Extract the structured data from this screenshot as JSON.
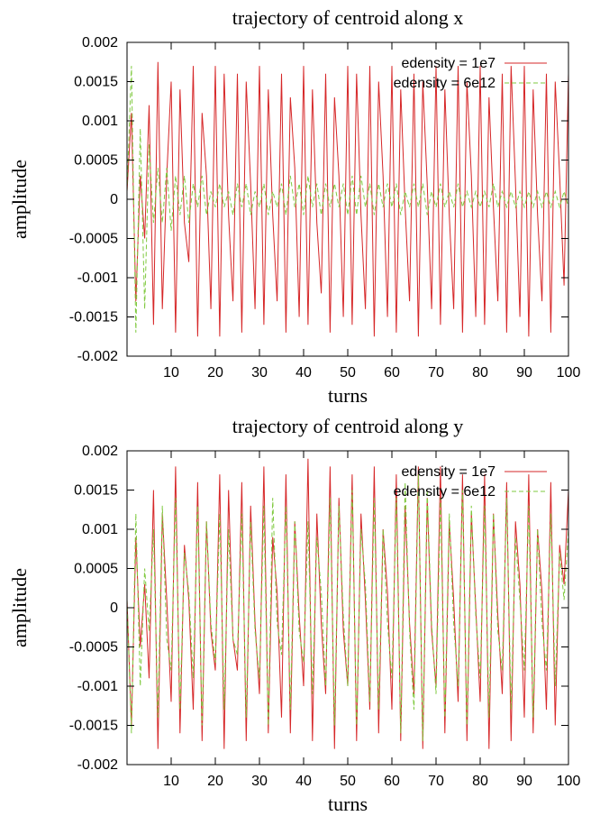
{
  "chart_data": [
    {
      "type": "line",
      "title": "trajectory of centroid along x",
      "xlabel": "turns",
      "ylabel": "amplitude",
      "xlim": [
        0,
        100
      ],
      "ylim": [
        -0.002,
        0.002
      ],
      "x_ticks": [
        10,
        20,
        30,
        40,
        50,
        60,
        70,
        80,
        90,
        100
      ],
      "x_tick_labels": [
        "10",
        "20",
        "30",
        "40",
        "50",
        "60",
        "70",
        "80",
        "90",
        "100"
      ],
      "y_ticks": [
        -0.002,
        -0.0015,
        -0.001,
        -0.0005,
        0,
        0.0005,
        0.001,
        0.0015,
        0.002
      ],
      "y_tick_labels": [
        "-0.002",
        "-0.0015",
        "-0.001",
        "-0.0005",
        "0",
        "0.0005",
        "0.001",
        "0.0015",
        "0.002"
      ],
      "legend_position": "top-right",
      "series": [
        {
          "name": "edensity = 1e7",
          "color": "#d62728",
          "dash": "solid",
          "x": [
            0,
            1,
            2,
            3,
            4,
            5,
            6,
            7,
            8,
            9,
            10,
            11,
            12,
            13,
            14,
            15,
            16,
            17,
            18,
            19,
            20,
            21,
            22,
            23,
            24,
            25,
            26,
            27,
            28,
            29,
            30,
            31,
            32,
            33,
            34,
            35,
            36,
            37,
            38,
            39,
            40,
            41,
            42,
            43,
            44,
            45,
            46,
            47,
            48,
            49,
            50,
            51,
            52,
            53,
            54,
            55,
            56,
            57,
            58,
            59,
            60,
            61,
            62,
            63,
            64,
            65,
            66,
            67,
            68,
            69,
            70,
            71,
            72,
            73,
            74,
            75,
            76,
            77,
            78,
            79,
            80,
            81,
            82,
            83,
            84,
            85,
            86,
            87,
            88,
            89,
            90,
            91,
            92,
            93,
            94,
            95,
            96,
            97,
            98,
            99,
            100
          ],
          "y": [
            0.0001,
            0.0011,
            -0.0013,
            0.0003,
            -0.0005,
            0.0012,
            -0.0016,
            0.00175,
            -0.0014,
            0.0003,
            0.0015,
            -0.0017,
            0.0014,
            -0.0003,
            -0.0008,
            0.0017,
            -0.00175,
            0.0011,
            0.0003,
            -0.0014,
            0.0017,
            -0.00175,
            0.0016,
            -0.0002,
            -0.0013,
            0.0016,
            -0.0017,
            0.0015,
            0.0002,
            -0.0014,
            0.0017,
            -0.0016,
            0.0014,
            -0.0002,
            -0.0013,
            0.0016,
            -0.0017,
            0.0013,
            0.0004,
            -0.0015,
            0.0017,
            -0.0016,
            0.0014,
            -0.0003,
            -0.0012,
            0.0016,
            -0.0017,
            0.0013,
            0.0003,
            -0.0015,
            0.0017,
            -0.0016,
            0.0016,
            -0.0002,
            -0.0014,
            0.0017,
            -0.00175,
            0.0015,
            0.0003,
            -0.0015,
            0.0017,
            -0.0017,
            0.0014,
            -0.0001,
            -0.0013,
            0.0016,
            -0.00175,
            0.0015,
            0.0002,
            -0.0014,
            0.0017,
            -0.0016,
            0.0014,
            -0.0002,
            -0.0014,
            0.0017,
            -0.0017,
            0.0015,
            0.0003,
            -0.0015,
            0.0017,
            -0.0016,
            0.0013,
            -0.0001,
            -0.0013,
            0.0016,
            -0.0017,
            0.0017,
            0.0002,
            -0.0015,
            0.0017,
            -0.00175,
            0.0014,
            -0.0002,
            -0.0013,
            0.0016,
            -0.0017,
            0.0015,
            0.0003,
            -0.0011,
            0.0016
          ]
        },
        {
          "name": "edensity = 6e12",
          "color": "#7fc93f",
          "dash": "dashed",
          "x": [
            0,
            1,
            2,
            3,
            4,
            5,
            6,
            7,
            8,
            9,
            10,
            11,
            12,
            13,
            14,
            15,
            16,
            17,
            18,
            19,
            20,
            21,
            22,
            23,
            24,
            25,
            26,
            27,
            28,
            29,
            30,
            31,
            32,
            33,
            34,
            35,
            36,
            37,
            38,
            39,
            40,
            41,
            42,
            43,
            44,
            45,
            46,
            47,
            48,
            49,
            50,
            51,
            52,
            53,
            54,
            55,
            56,
            57,
            58,
            59,
            60,
            61,
            62,
            63,
            64,
            65,
            66,
            67,
            68,
            69,
            70,
            71,
            72,
            73,
            74,
            75,
            76,
            77,
            78,
            79,
            80,
            81,
            82,
            83,
            84,
            85,
            86,
            87,
            88,
            89,
            90,
            91,
            92,
            93,
            94,
            95,
            96,
            97,
            98,
            99,
            100
          ],
          "y": [
            0.0001,
            0.0017,
            -0.0017,
            0.0009,
            -0.0014,
            0.0007,
            -0.0003,
            0.0004,
            -0.0003,
            0.0004,
            -0.0004,
            0.0003,
            -0.0002,
            0.0003,
            -0.0003,
            0.0002,
            -0.0001,
            0.0003,
            -0.0002,
            0.0001,
            -0.0001,
            0.0002,
            -0.0001,
            0.0001,
            -0.0002,
            0.0002,
            -0.0001,
            0.0002,
            -0.0002,
            0.0001,
            -0.0001,
            0.0002,
            -0.0002,
            0.0001,
            -0.0001,
            0.0002,
            -0.0002,
            0.0003,
            -0.0001,
            0.0002,
            -0.0002,
            0.0003,
            -0.0001,
            0.0002,
            -0.0002,
            0.0002,
            -0.0001,
            0.0002,
            -0.0001,
            0.0002,
            -0.0002,
            0.0003,
            -0.0002,
            0.0003,
            -0.0001,
            0.0002,
            -0.0002,
            0.0002,
            -0.0001,
            0.0002,
            -0.0001,
            0.0002,
            -0.0002,
            0.0001,
            -0.0001,
            0.0002,
            -0.0001,
            0.0002,
            -0.0002,
            0.0001,
            -0.0001,
            0.0002,
            -0.0001,
            0.0001,
            -0.0001,
            0.0002,
            -0.0001,
            0.0001,
            -0.0001,
            0.0001,
            -0.0001,
            0.0001,
            -0.0001,
            0.0002,
            -0.0001,
            0.0001,
            -0.0001,
            0.0001,
            -0.0001,
            0.0001,
            -0.0001,
            0.0001,
            -0.0001,
            0.0001,
            -0.0001,
            0.0001,
            -0.0001,
            0.0001,
            -0.0001,
            0.0001,
            -0.0001
          ]
        }
      ]
    },
    {
      "type": "line",
      "title": "trajectory of centroid along y",
      "xlabel": "turns",
      "ylabel": "amplitude",
      "xlim": [
        0,
        100
      ],
      "ylim": [
        -0.002,
        0.002
      ],
      "x_ticks": [
        10,
        20,
        30,
        40,
        50,
        60,
        70,
        80,
        90,
        100
      ],
      "x_tick_labels": [
        "10",
        "20",
        "30",
        "40",
        "50",
        "60",
        "70",
        "80",
        "90",
        "100"
      ],
      "y_ticks": [
        -0.002,
        -0.0015,
        -0.001,
        -0.0005,
        0,
        0.0005,
        0.001,
        0.0015,
        0.002
      ],
      "y_tick_labels": [
        "-0.002",
        "-0.0015",
        "-0.001",
        "-0.0005",
        "0",
        "0.0005",
        "0.001",
        "0.0015",
        "0.002"
      ],
      "legend_position": "top-right",
      "series": [
        {
          "name": "edensity = 1e7",
          "color": "#d62728",
          "dash": "solid",
          "x": [
            0,
            1,
            2,
            3,
            4,
            5,
            6,
            7,
            8,
            9,
            10,
            11,
            12,
            13,
            14,
            15,
            16,
            17,
            18,
            19,
            20,
            21,
            22,
            23,
            24,
            25,
            26,
            27,
            28,
            29,
            30,
            31,
            32,
            33,
            34,
            35,
            36,
            37,
            38,
            39,
            40,
            41,
            42,
            43,
            44,
            45,
            46,
            47,
            48,
            49,
            50,
            51,
            52,
            53,
            54,
            55,
            56,
            57,
            58,
            59,
            60,
            61,
            62,
            63,
            64,
            65,
            66,
            67,
            68,
            69,
            70,
            71,
            72,
            73,
            74,
            75,
            76,
            77,
            78,
            79,
            80,
            81,
            82,
            83,
            84,
            85,
            86,
            87,
            88,
            89,
            90,
            91,
            92,
            93,
            94,
            95,
            96,
            97,
            98,
            99,
            100
          ],
          "y": [
            0.0001,
            -0.0015,
            0.0009,
            -0.0005,
            0.0003,
            -0.0009,
            0.0015,
            -0.0018,
            0.0012,
            0.0001,
            -0.0012,
            0.0018,
            -0.0016,
            0.0008,
            0.0001,
            -0.0013,
            0.0016,
            -0.0017,
            0.0011,
            -0.0003,
            -0.0008,
            0.0017,
            -0.0018,
            0.0015,
            -0.0004,
            -0.0008,
            0.0016,
            -0.0017,
            0.0013,
            -0.0002,
            -0.0011,
            0.0018,
            -0.0016,
            0.0009,
            0.0002,
            -0.0014,
            0.0017,
            -0.0016,
            0.0011,
            -0.0001,
            -0.001,
            0.0019,
            -0.0017,
            0.0012,
            -0.0002,
            -0.0011,
            0.0018,
            -0.0018,
            0.0014,
            -0.0003,
            -0.001,
            0.0017,
            -0.0017,
            0.0012,
            0.0001,
            -0.0013,
            0.0018,
            -0.0016,
            0.001,
            0.0002,
            -0.0013,
            0.0017,
            -0.0017,
            0.0013,
            -0.0002,
            -0.0011,
            0.0018,
            -0.0018,
            0.0014,
            -0.0003,
            -0.001,
            0.0018,
            -0.0016,
            0.0011,
            0.0001,
            -0.0012,
            0.0017,
            -0.0017,
            0.0012,
            0.0,
            -0.0012,
            0.0017,
            -0.0018,
            0.0012,
            -0.0001,
            -0.0011,
            0.0016,
            -0.0017,
            0.0011,
            0.0003,
            -0.0014,
            0.0017,
            -0.0016,
            0.001,
            0.0002,
            -0.0013,
            0.0016,
            -0.0015,
            0.0008,
            0.0003,
            0.0015
          ]
        },
        {
          "name": "edensity = 6e12",
          "color": "#7fc93f",
          "dash": "dashed",
          "x": [
            0,
            1,
            2,
            3,
            4,
            5,
            6,
            7,
            8,
            9,
            10,
            11,
            12,
            13,
            14,
            15,
            16,
            17,
            18,
            19,
            20,
            21,
            22,
            23,
            24,
            25,
            26,
            27,
            28,
            29,
            30,
            31,
            32,
            33,
            34,
            35,
            36,
            37,
            38,
            39,
            40,
            41,
            42,
            43,
            44,
            45,
            46,
            47,
            48,
            49,
            50,
            51,
            52,
            53,
            54,
            55,
            56,
            57,
            58,
            59,
            60,
            61,
            62,
            63,
            64,
            65,
            66,
            67,
            68,
            69,
            70,
            71,
            72,
            73,
            74,
            75,
            76,
            77,
            78,
            79,
            80,
            81,
            82,
            83,
            84,
            85,
            86,
            87,
            88,
            89,
            90,
            91,
            92,
            93,
            94,
            95,
            96,
            97,
            98,
            99,
            100
          ],
          "y": [
            0.0001,
            -0.0016,
            0.0012,
            -0.001,
            0.0005,
            -0.0003,
            0.001,
            -0.0014,
            0.0013,
            -0.0004,
            -0.0008,
            0.0014,
            -0.0013,
            0.0007,
            0.0002,
            -0.0009,
            0.0013,
            -0.0015,
            0.0011,
            -0.0002,
            -0.0007,
            0.0012,
            -0.0013,
            0.001,
            -0.0004,
            -0.0006,
            0.0012,
            -0.0014,
            0.0011,
            -0.0003,
            -0.0009,
            0.0013,
            -0.0015,
            0.0014,
            -0.0002,
            -0.0006,
            0.0013,
            -0.0013,
            0.0011,
            -0.0003,
            -0.0007,
            0.0011,
            -0.0011,
            0.0009,
            0.0002,
            -0.001,
            0.0014,
            -0.0015,
            0.0013,
            -0.0001,
            -0.001,
            0.0015,
            -0.0015,
            0.001,
            0.0003,
            -0.0012,
            0.0014,
            -0.0013,
            0.001,
            -0.0002,
            -0.0009,
            0.0014,
            -0.0016,
            0.0016,
            -0.0003,
            -0.0013,
            0.0017,
            -0.0017,
            0.0015,
            -0.0002,
            -0.0011,
            0.0014,
            -0.0014,
            0.0012,
            -0.0002,
            -0.001,
            0.0015,
            -0.0015,
            0.0013,
            -0.0001,
            -0.0009,
            0.0013,
            -0.0014,
            0.0012,
            -0.0003,
            -0.0008,
            0.0014,
            -0.0013,
            0.0009,
            0.0001,
            -0.0008,
            0.0013,
            -0.0014,
            0.001,
            -0.0002,
            -0.0008,
            0.0012,
            -0.001,
            0.0007,
            0.0001,
            0.001
          ]
        }
      ]
    }
  ]
}
